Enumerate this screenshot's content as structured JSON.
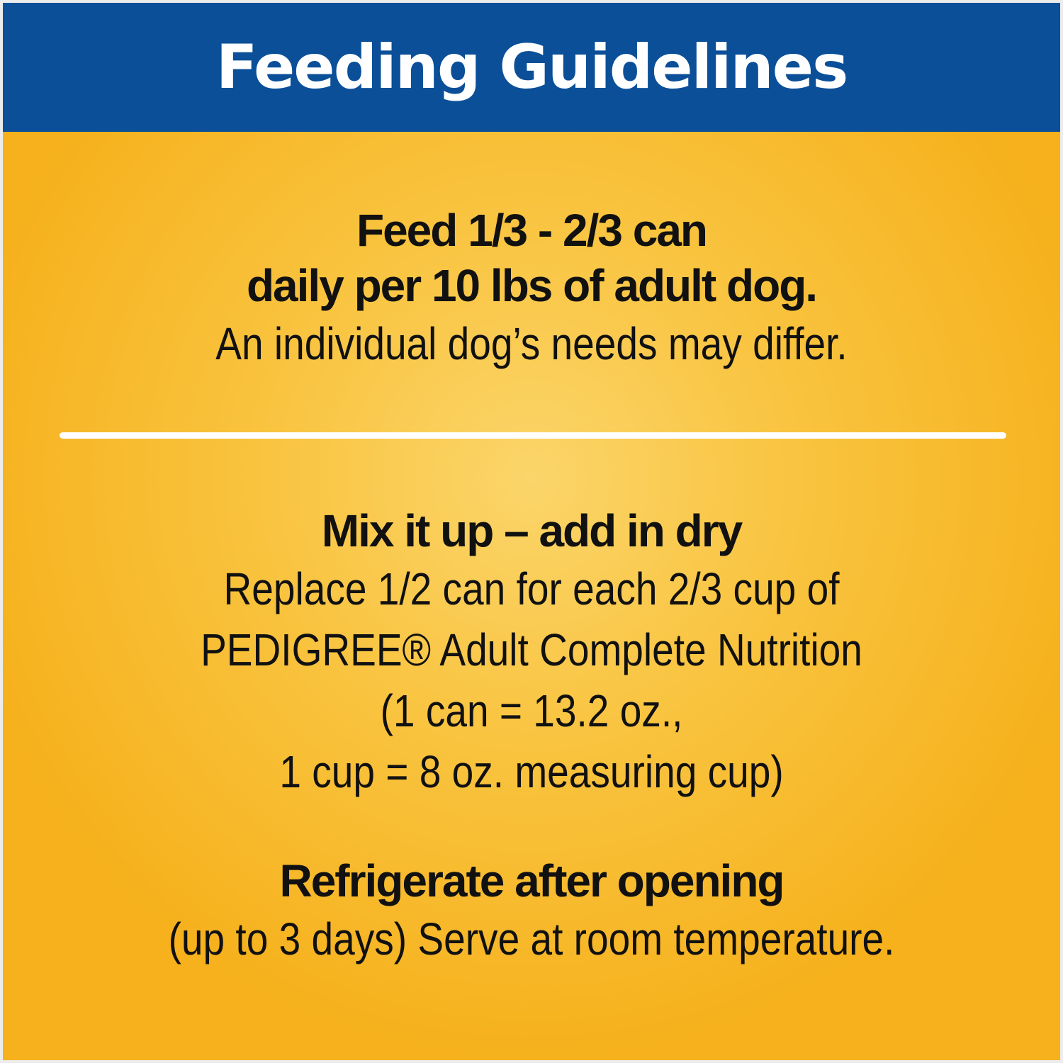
{
  "header": {
    "title": "Feeding Guidelines"
  },
  "feeding": {
    "line1": "Feed 1/3 - 2/3 can",
    "line2": "daily per 10 lbs of adult dog.",
    "line3": "An individual dog’s needs may differ."
  },
  "mix": {
    "heading": "Mix it up – add in dry",
    "lines": [
      "Replace 1/2 can for each 2/3 cup of",
      "PEDIGREE® Adult Complete Nutrition",
      "(1 can = 13.2 oz.,",
      "1 cup = 8 oz. measuring cup)"
    ]
  },
  "storage": {
    "heading": "Refrigerate after opening",
    "line": "(up to 3 days) Serve at room temperature."
  },
  "colors": {
    "header": "#0a4f98",
    "background": "#f6b11c",
    "divider": "#ffffff"
  }
}
